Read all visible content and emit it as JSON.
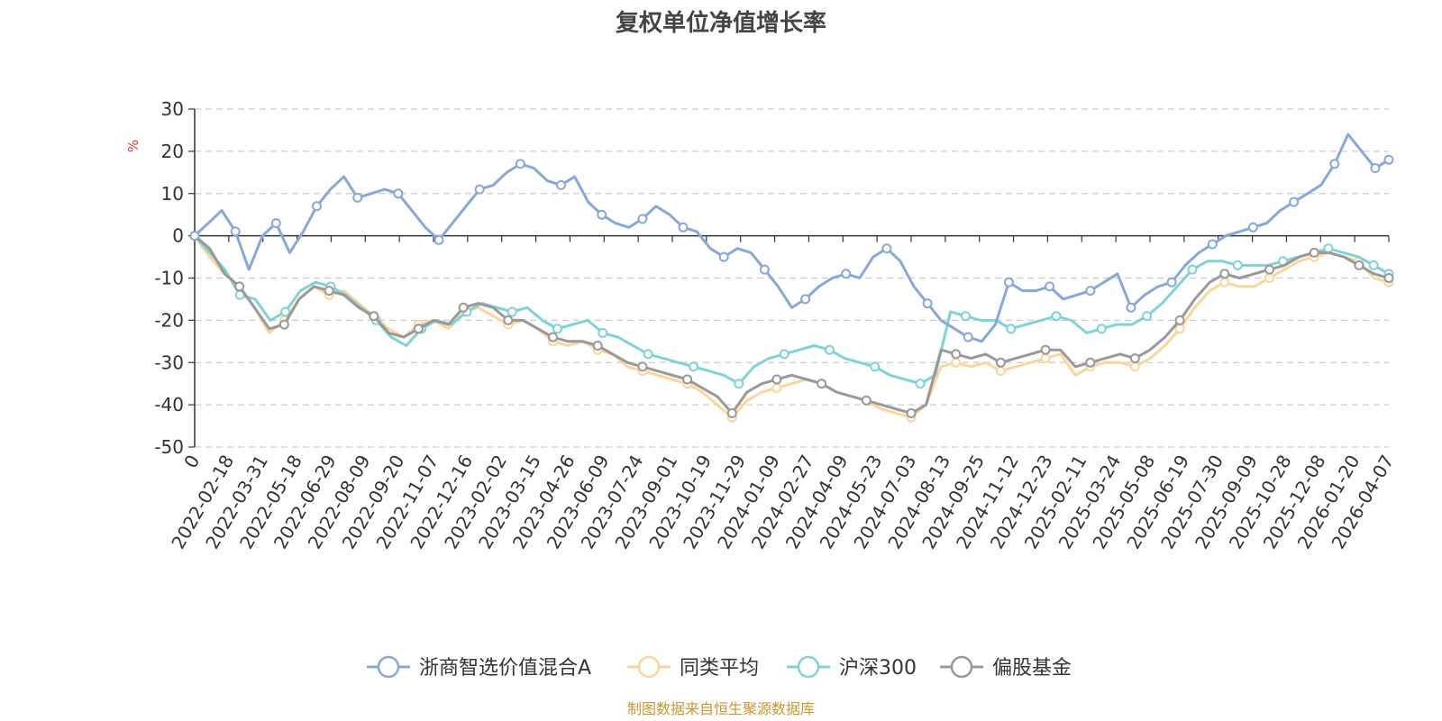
{
  "chart_data": {
    "type": "line",
    "title": "复权单位净值增长率",
    "ylabel": "%",
    "ylim": [
      -50,
      30
    ],
    "yticks": [
      "30",
      "20",
      "10",
      "0",
      "-10",
      "-20",
      "-30",
      "-40",
      "-50"
    ],
    "ytick_values": [
      30,
      20,
      10,
      0,
      -10,
      -20,
      -30,
      -40,
      -50
    ],
    "x_tick_labels": [
      "0",
      "2022-02-18",
      "2022-03-31",
      "2022-05-18",
      "2022-06-29",
      "2022-08-09",
      "2022-09-20",
      "2022-11-07",
      "2022-12-16",
      "2023-02-02",
      "2023-03-15",
      "2023-04-26",
      "2023-06-09",
      "2023-07-24",
      "2023-09-01",
      "2023-10-19",
      "2023-11-29",
      "2024-01-09",
      "2024-02-27",
      "2024-04-09",
      "2024-05-23",
      "2024-07-03",
      "2024-08-13",
      "2024-09-25",
      "2024-11-12",
      "2024-12-23",
      "2025-02-11",
      "2025-03-24",
      "2025-05-08",
      "2025-06-19",
      "2025-07-30",
      "2025-09-09",
      "2025-10-28",
      "2025-12-08",
      "2026-01-20",
      "2026-04-07"
    ],
    "grid": true,
    "legend_position": "bottom-center",
    "source_note": "制图数据来自恒生聚源数据库",
    "series": [
      {
        "name": "浙商智选价值混合A",
        "color": "#87a8d8",
        "values": [
          0,
          3,
          6,
          1,
          -8,
          0,
          3,
          -4,
          1,
          7,
          11,
          14,
          9,
          10,
          11,
          10,
          6,
          2,
          -1,
          3,
          7,
          11,
          12,
          15,
          17,
          16,
          13,
          12,
          14,
          8,
          5,
          3,
          2,
          4,
          7,
          5,
          2,
          1,
          -3,
          -5,
          -3,
          -4,
          -8,
          -12,
          -17,
          -15,
          -12,
          -10,
          -9,
          -10,
          -5,
          -3,
          -6,
          -12,
          -16,
          -20,
          -22,
          -24,
          -25,
          -21,
          -11,
          -13,
          -13,
          -12,
          -15,
          -14,
          -13,
          -11,
          -9,
          -17,
          -14,
          -12,
          -11,
          -7,
          -4,
          -2,
          0,
          1,
          2,
          3,
          6,
          8,
          10,
          12,
          17,
          24,
          20,
          16,
          18
        ]
      },
      {
        "name": "同类平均",
        "color": "#fcd699",
        "values": [
          0,
          -5,
          -9,
          -12,
          -17,
          -23,
          -20,
          -15,
          -12,
          -14,
          -13,
          -16,
          -19,
          -22,
          -24,
          -21,
          -20,
          -22,
          -18,
          -17,
          -19,
          -21,
          -20,
          -22,
          -25,
          -26,
          -25,
          -27,
          -28,
          -31,
          -32,
          -33,
          -34,
          -35,
          -37,
          -40,
          -43,
          -39,
          -37,
          -36,
          -35,
          -34,
          -35,
          -37,
          -38,
          -39,
          -41,
          -42,
          -43,
          -40,
          -31,
          -30,
          -31,
          -30,
          -32,
          -31,
          -30,
          -29,
          -28,
          -33,
          -31,
          -30,
          -30,
          -31,
          -29,
          -26,
          -22,
          -17,
          -13,
          -11,
          -12,
          -12,
          -10,
          -8,
          -6,
          -5,
          -4,
          -5,
          -6,
          -10,
          -11
        ]
      },
      {
        "name": "沪深300",
        "color": "#7fd3d4",
        "values": [
          0,
          -4,
          -8,
          -14,
          -15,
          -20,
          -18,
          -13,
          -11,
          -12,
          -14,
          -17,
          -20,
          -24,
          -26,
          -22,
          -20,
          -21,
          -18,
          -16,
          -17,
          -18,
          -17,
          -20,
          -22,
          -21,
          -20,
          -23,
          -24,
          -26,
          -28,
          -29,
          -30,
          -31,
          -32,
          -33,
          -35,
          -31,
          -29,
          -28,
          -27,
          -26,
          -27,
          -29,
          -30,
          -31,
          -33,
          -34,
          -35,
          -33,
          -18,
          -19,
          -20,
          -20,
          -22,
          -21,
          -20,
          -19,
          -20,
          -23,
          -22,
          -21,
          -21,
          -19,
          -16,
          -12,
          -8,
          -6,
          -6,
          -7,
          -7,
          -7,
          -6,
          -5,
          -4,
          -3,
          -4,
          -5,
          -7,
          -9
        ]
      },
      {
        "name": "偏股基金",
        "color": "#999999",
        "values": [
          0,
          -3,
          -9,
          -12,
          -17,
          -22,
          -21,
          -15,
          -12,
          -13,
          -14,
          -17,
          -19,
          -23,
          -24,
          -22,
          -20,
          -21,
          -17,
          -16,
          -17,
          -20,
          -20,
          -22,
          -24,
          -25,
          -25,
          -26,
          -28,
          -30,
          -31,
          -32,
          -33,
          -34,
          -36,
          -38,
          -42,
          -37,
          -35,
          -34,
          -33,
          -34,
          -35,
          -37,
          -38,
          -39,
          -40,
          -41,
          -42,
          -40,
          -27,
          -28,
          -29,
          -28,
          -30,
          -29,
          -28,
          -27,
          -27,
          -31,
          -30,
          -29,
          -28,
          -29,
          -27,
          -24,
          -20,
          -15,
          -11,
          -9,
          -10,
          -9,
          -8,
          -7,
          -5,
          -4,
          -4,
          -5,
          -7,
          -9,
          -10
        ]
      }
    ]
  }
}
